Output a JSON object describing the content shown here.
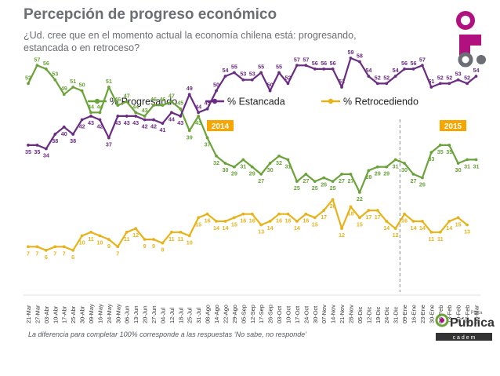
{
  "title": "Percepción de progreso económico",
  "subtitle": "¿Ud. cree que en el momento actual la economía chilena está: progresando, estancada o en retroceso?",
  "footnote": "La diferencia para completar 100% corresponde a las respuestas ‘No sabe, no responde’",
  "brand": {
    "name": "Pública",
    "tag": "Plaza",
    "sub": "c a d e m"
  },
  "colors": {
    "progresando": "#6aa33a",
    "estancada": "#6a2c83",
    "retrocediendo": "#e8b31a",
    "year_badge": "#f7a600",
    "divider": "#9aa0a6"
  },
  "chart_data": {
    "type": "line",
    "title": "Percepción de progreso económico",
    "categories": [
      "21-Mar",
      "27-Mar",
      "03-Abr",
      "10-Abr",
      "17-Abr",
      "25-Abr",
      "30-Abr",
      "09-May",
      "16-May",
      "24-May",
      "30-May",
      "06-Jun",
      "13-Jun",
      "20-Jun",
      "27-Jun",
      "04-Jul",
      "12-Jul",
      "18-Jul",
      "25-Jul",
      "31-Jul",
      "08-Ago",
      "14-Ago",
      "22-Ago",
      "29-Ago",
      "05-Sep",
      "12-Sep",
      "17-Sep",
      "26-Sep",
      "03-Oct",
      "10-Oct",
      "17-Oct",
      "24-Oct",
      "30-Oct",
      "07-Nov",
      "14-Nov",
      "21-Nov",
      "28-Nov",
      "05-Dic",
      "12-Dic",
      "19-Dic",
      "24-Dic",
      "31-Dic",
      "09-Ene",
      "16-Ene",
      "23-Ene",
      "30-Ene",
      "06-Feb",
      "13-Feb",
      "20-Feb",
      "27-Feb",
      "06-Mar"
    ],
    "series": [
      {
        "name": "% Progresando",
        "values": [
          52,
          57,
          56,
          53,
          49,
          51,
          50,
          44,
          44,
          51,
          46,
          47,
          44,
          43,
          46,
          46,
          47,
          45,
          39,
          43,
          37,
          32,
          30,
          29,
          31,
          29,
          27,
          30,
          32,
          31,
          25,
          27,
          25,
          26,
          25,
          27,
          27,
          22,
          28,
          29,
          29,
          31,
          30,
          27,
          26,
          33,
          35,
          35,
          30,
          31,
          31
        ]
      },
      {
        "name": "% Estancada",
        "values": [
          35,
          35,
          34,
          38,
          40,
          38,
          42,
          43,
          42,
          37,
          43,
          43,
          43,
          42,
          42,
          41,
          44,
          43,
          49,
          44,
          45,
          50,
          54,
          55,
          53,
          53,
          55,
          50,
          55,
          52,
          57,
          57,
          56,
          56,
          56,
          51,
          59,
          58,
          54,
          52,
          52,
          54,
          56,
          56,
          57,
          51,
          52,
          52,
          53,
          52,
          54
        ]
      },
      {
        "name": "% Retrocediendo",
        "values": [
          7,
          7,
          6,
          7,
          7,
          6,
          10,
          11,
          10,
          9,
          7,
          11,
          12,
          9,
          9,
          8,
          11,
          11,
          10,
          15,
          16,
          14,
          14,
          15,
          16,
          16,
          13,
          14,
          16,
          16,
          14,
          16,
          15,
          17,
          20,
          12,
          18,
          15,
          17,
          17,
          14,
          12,
          16,
          14,
          14,
          11,
          11,
          14,
          15,
          13,
          null
        ]
      }
    ],
    "legend": [
      "% Progresando",
      "% Estancada",
      "% Retrocediendo"
    ],
    "legend_position": "top-center",
    "years": [
      "2014",
      "2015"
    ],
    "year_break_after": "31-Dic",
    "ylim": [
      0,
      70
    ],
    "grid": false
  }
}
